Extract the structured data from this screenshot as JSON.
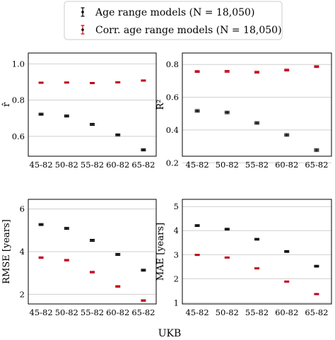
{
  "chart_data": {
    "type": "scatter",
    "xlabel": "UKB",
    "categories": [
      "45-82",
      "50-82",
      "55-82",
      "60-82",
      "65-82"
    ],
    "legend": {
      "placement": "top-center",
      "entries": [
        {
          "label": "Age range models (N = 18,050)",
          "color": "#000000"
        },
        {
          "label": "Corr. age range models (N = 18,050)",
          "color": "#c0001a"
        }
      ]
    },
    "grid": true,
    "panels": [
      {
        "ylabel": "r̂",
        "yticks": [
          "0.6",
          "0.8",
          "1.0"
        ],
        "ytick_values": [
          0.6,
          0.8,
          1.0
        ],
        "ylim": [
          0.49,
          1.06
        ],
        "series": [
          {
            "name": "Age range models (N = 18,050)",
            "values": [
              0.722,
              0.712,
              0.666,
              0.608,
              0.525
            ],
            "err": [
              0.006,
              0.006,
              0.006,
              0.006,
              0.006
            ]
          },
          {
            "name": "Corr. age range models (N = 18,050)",
            "values": [
              0.896,
              0.897,
              0.894,
              0.898,
              0.908
            ],
            "err": [
              0.004,
              0.004,
              0.004,
              0.004,
              0.004
            ]
          }
        ]
      },
      {
        "ylabel": "R²",
        "yticks": [
          "0.2",
          "0.4",
          "0.6",
          "0.8"
        ],
        "ytick_values": [
          0.2,
          0.4,
          0.6,
          0.8
        ],
        "ylim": [
          0.24,
          0.87
        ],
        "series": [
          {
            "name": "Age range models (N = 18,050)",
            "values": [
              0.517,
              0.507,
              0.443,
              0.37,
              0.277
            ],
            "err": [
              0.008,
              0.008,
              0.008,
              0.008,
              0.008
            ]
          },
          {
            "name": "Corr. age range models (N = 18,050)",
            "values": [
              0.757,
              0.758,
              0.753,
              0.766,
              0.787
            ],
            "err": [
              0.006,
              0.006,
              0.006,
              0.006,
              0.006
            ]
          }
        ]
      },
      {
        "ylabel": "RMSE [years]",
        "yticks": [
          "2",
          "4",
          "6"
        ],
        "ytick_values": [
          2,
          4,
          6
        ],
        "ylim": [
          1.55,
          6.45
        ],
        "series": [
          {
            "name": "Age range models (N = 18,050)",
            "values": [
              5.27,
              5.09,
              4.53,
              3.87,
              3.13
            ],
            "err": [
              0.05,
              0.05,
              0.05,
              0.05,
              0.05
            ]
          },
          {
            "name": "Corr. age range models (N = 18,050)",
            "values": [
              3.72,
              3.6,
              3.04,
              2.37,
              1.71
            ],
            "err": [
              0.04,
              0.04,
              0.04,
              0.04,
              0.04
            ]
          }
        ]
      },
      {
        "ylabel": "MAE [years]",
        "yticks": [
          "1",
          "2",
          "3",
          "4",
          "5"
        ],
        "ytick_values": [
          1,
          2,
          3,
          4,
          5
        ],
        "ylim": [
          0.95,
          5.3
        ],
        "series": [
          {
            "name": "Age range models (N = 18,050)",
            "values": [
              4.21,
              4.06,
              3.64,
              3.13,
              2.52
            ],
            "err": [
              0.04,
              0.04,
              0.04,
              0.04,
              0.04
            ]
          },
          {
            "name": "Corr. age range models (N = 18,050)",
            "values": [
              2.99,
              2.88,
              2.43,
              1.88,
              1.36
            ],
            "err": [
              0.03,
              0.03,
              0.03,
              0.03,
              0.03
            ]
          }
        ]
      }
    ]
  }
}
